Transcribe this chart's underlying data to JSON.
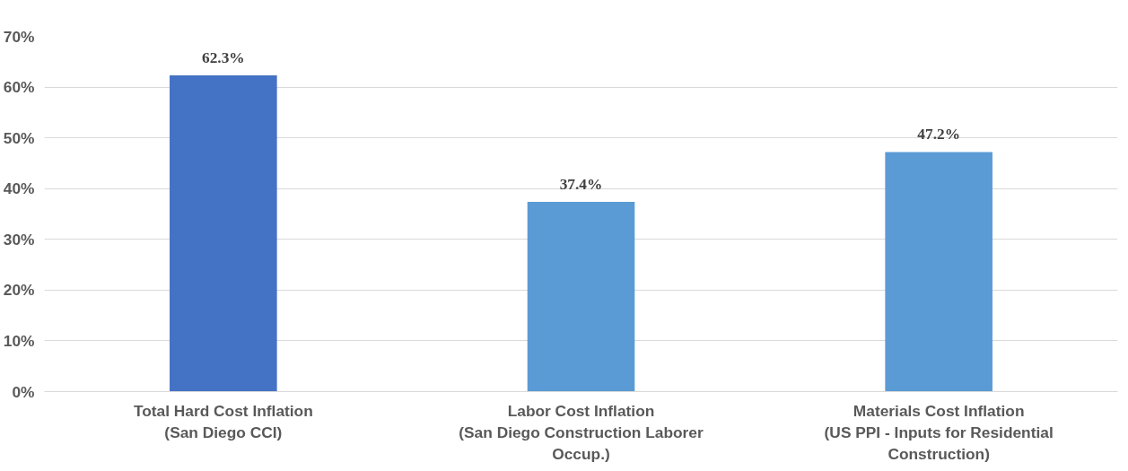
{
  "chart_data": {
    "type": "bar",
    "categories": [
      "Total Hard Cost Inflation\n(San Diego CCI)",
      "Labor Cost Inflation\n(San Diego Construction Laborer\nOccup.)",
      "Materials Cost Inflation\n(US PPI - Inputs for Residential\nConstruction)"
    ],
    "values": [
      62.3,
      37.4,
      47.2
    ],
    "colors": [
      "#4472c4",
      "#5b9bd5",
      "#5b9bd5"
    ],
    "value_labels": [
      "62.3%",
      "37.4%",
      "47.2%"
    ],
    "ylim": [
      0,
      70
    ],
    "yticks": [
      {
        "value": 0,
        "label": "0%"
      },
      {
        "value": 10,
        "label": "10%"
      },
      {
        "value": 20,
        "label": "20%"
      },
      {
        "value": 30,
        "label": "30%"
      },
      {
        "value": 40,
        "label": "40%"
      },
      {
        "value": 50,
        "label": "50%"
      },
      {
        "value": 60,
        "label": "60%"
      },
      {
        "value": 70,
        "label": "70%"
      }
    ],
    "grid": "y"
  }
}
